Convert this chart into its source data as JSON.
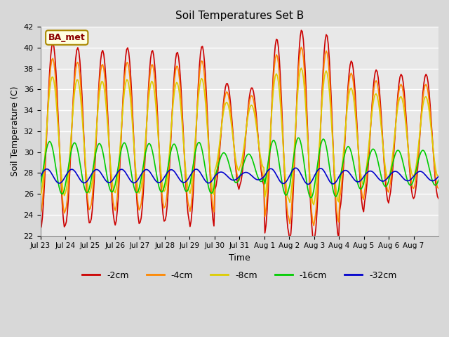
{
  "title": "Soil Temperatures Set B",
  "xlabel": "Time",
  "ylabel": "Soil Temperature (C)",
  "ylim": [
    22,
    42
  ],
  "annotation": "BA_met",
  "legend_labels": [
    "-2cm",
    "-4cm",
    "-8cm",
    "-16cm",
    "-32cm"
  ],
  "legend_colors": [
    "#cc0000",
    "#ff8800",
    "#ddcc00",
    "#00cc00",
    "#0000cc"
  ],
  "bg_color": "#e8e8e8",
  "grid_color": "#ffffff",
  "tick_labels": [
    "Jul 23",
    "Jul 24",
    "Jul 25",
    "Jul 26",
    "Jul 27",
    "Jul 28",
    "Jul 29",
    "Jul 30",
    "Jul 31",
    "Aug 1",
    "Aug 2",
    "Aug 3",
    "Aug 4",
    "Aug 5",
    "Aug 6",
    "Aug 7"
  ],
  "ytick_labels": [
    22,
    24,
    26,
    28,
    30,
    32,
    34,
    36,
    38,
    40,
    42
  ]
}
